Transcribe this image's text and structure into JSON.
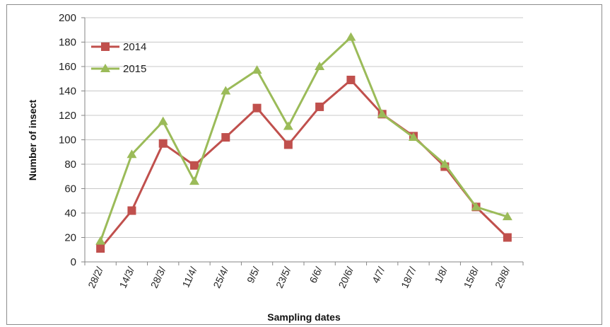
{
  "chart_data": {
    "type": "line",
    "title": "",
    "xlabel": "Sampling dates",
    "ylabel": "Number of insect",
    "ylim": [
      0,
      200
    ],
    "yticks": [
      0,
      20,
      40,
      60,
      80,
      100,
      120,
      140,
      160,
      180,
      200
    ],
    "grid": "horizontal",
    "legend_position": "top-left",
    "categories": [
      "28/2/",
      "14/3/",
      "28/3/",
      "11/4/",
      "25/4/",
      "9/5/",
      "23/5/",
      "6/6/",
      "20/6/",
      "4/7/",
      "18/7/",
      "1/8/",
      "15/8/",
      "29/8/"
    ],
    "series": [
      {
        "name": "2014",
        "marker": "square",
        "color": "#c0504d",
        "values": [
          11,
          42,
          97,
          79,
          102,
          126,
          96,
          127,
          149,
          121,
          103,
          78,
          45,
          20
        ]
      },
      {
        "name": "2015",
        "marker": "triangle",
        "color": "#9bbb59",
        "values": [
          17,
          88,
          115,
          66,
          140,
          157,
          111,
          160,
          184,
          121,
          102,
          80,
          45,
          37
        ]
      }
    ]
  }
}
